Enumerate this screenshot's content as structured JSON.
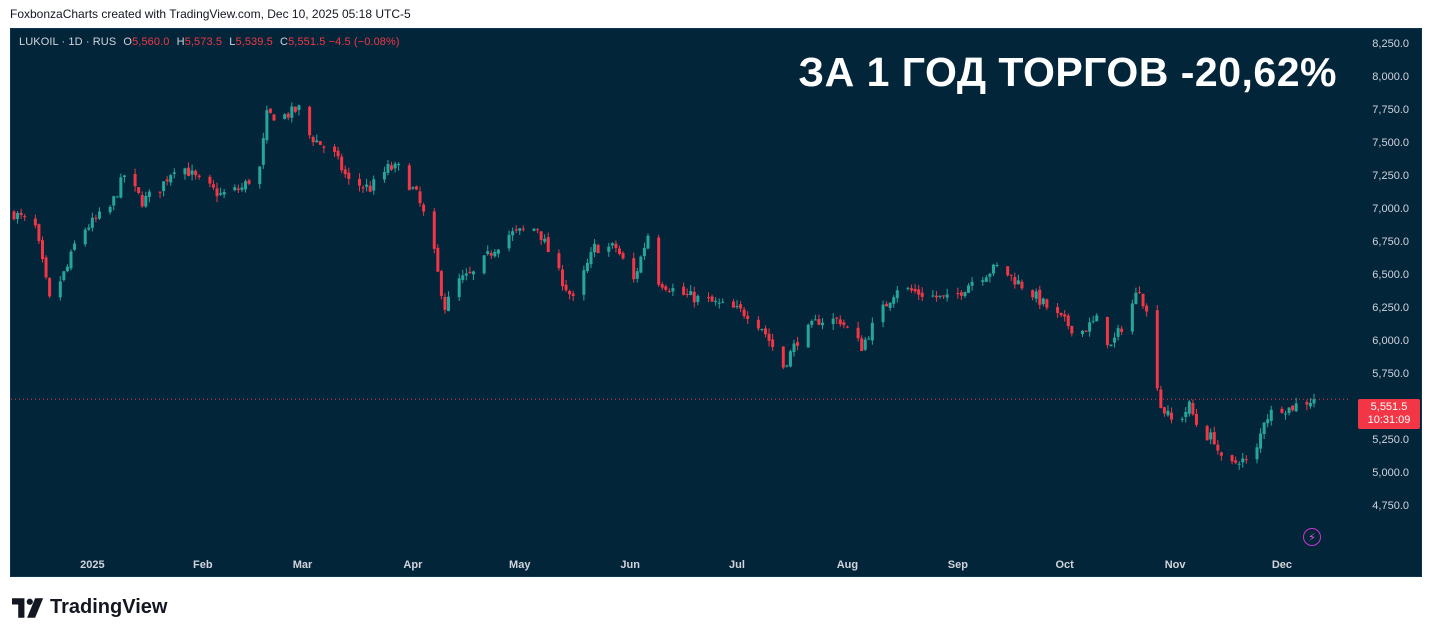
{
  "caption": "FoxbonzaCharts created with TradingView.com, Dec 10, 2025 05:18 UTC-5",
  "legend": {
    "symbol": "LUKOIL · 1D · RUS",
    "o_label": "O",
    "o": "5,560.0",
    "h_label": "H",
    "h": "5,573.5",
    "l_label": "L",
    "l": "5,539.5",
    "c_label": "C",
    "c": "5,551.5",
    "change": "−4.5 (−0.08%)"
  },
  "headline": "ЗА 1 ГОД ТОРГОВ -20,62%",
  "price_tag": {
    "price": "5,551.5",
    "countdown": "10:31:09"
  },
  "brand": "TradingView",
  "icons": {
    "bolt": "lightning-icon",
    "logo": "tradingview-logo-icon"
  },
  "colors": {
    "background": "#03253a",
    "up": "#26a69a",
    "down": "#f23645",
    "axis_text": "#d1d4dc"
  },
  "chart_data": {
    "type": "candlestick",
    "y_ticks": [
      "8,250.0",
      "8,000.0",
      "7,750.0",
      "7,500.0",
      "7,250.0",
      "7,000.0",
      "6,750.0",
      "6,500.0",
      "6,250.0",
      "6,000.0",
      "5,750.0",
      "5,500.0",
      "5,250.0",
      "5,000.0",
      "4,750.0"
    ],
    "y_tick_values": [
      8250,
      8000,
      7750,
      7500,
      7250,
      7000,
      6750,
      6500,
      6250,
      6000,
      5750,
      5500,
      5250,
      5000,
      4750
    ],
    "ylim": [
      4600,
      8300
    ],
    "x_ticks": [
      "2025",
      "Feb",
      "Mar",
      "Apr",
      "May",
      "Jun",
      "Jul",
      "Aug",
      "Sep",
      "Oct",
      "Nov",
      "Dec"
    ],
    "x_tick_dates": [
      "2025-01-01",
      "2025-02-01",
      "2025-03-01",
      "2025-04-01",
      "2025-05-01",
      "2025-06-01",
      "2025-07-01",
      "2025-08-01",
      "2025-09-01",
      "2025-10-01",
      "2025-11-01",
      "2025-12-01"
    ],
    "xlim": [
      "2024-12-10",
      "2025-12-10"
    ],
    "last_price": 5551.5,
    "close_path": [
      [
        "2024-12-10",
        6960
      ],
      [
        "2024-12-16",
        6850
      ],
      [
        "2024-12-20",
        6300
      ],
      [
        "2024-12-25",
        6550
      ],
      [
        "2024-12-28",
        6800
      ],
      [
        "2025-01-06",
        7000
      ],
      [
        "2025-01-10",
        7250
      ],
      [
        "2025-01-15",
        7050
      ],
      [
        "2025-01-20",
        7150
      ],
      [
        "2025-01-25",
        7350
      ],
      [
        "2025-01-31",
        7200
      ],
      [
        "2025-02-06",
        7100
      ],
      [
        "2025-02-12",
        7150
      ],
      [
        "2025-02-17",
        7300
      ],
      [
        "2025-02-19",
        7700
      ],
      [
        "2025-02-24",
        7700
      ],
      [
        "2025-02-28",
        7750
      ],
      [
        "2025-03-03",
        7550
      ],
      [
        "2025-03-10",
        7400
      ],
      [
        "2025-03-14",
        7200
      ],
      [
        "2025-03-20",
        7150
      ],
      [
        "2025-03-25",
        7300
      ],
      [
        "2025-03-28",
        7300
      ],
      [
        "2025-04-02",
        7100
      ],
      [
        "2025-04-06",
        6800
      ],
      [
        "2025-04-08",
        6500
      ],
      [
        "2025-04-10",
        6250
      ],
      [
        "2025-04-14",
        6450
      ],
      [
        "2025-04-18",
        6500
      ],
      [
        "2025-04-24",
        6700
      ],
      [
        "2025-04-28",
        6800
      ],
      [
        "2025-05-06",
        6850
      ],
      [
        "2025-05-12",
        6500
      ],
      [
        "2025-05-16",
        6300
      ],
      [
        "2025-05-22",
        6700
      ],
      [
        "2025-05-28",
        6700
      ],
      [
        "2025-06-02",
        6450
      ],
      [
        "2025-06-06",
        6800
      ],
      [
        "2025-06-09",
        6450
      ],
      [
        "2025-06-15",
        6350
      ],
      [
        "2025-06-22",
        6300
      ],
      [
        "2025-06-28",
        6250
      ],
      [
        "2025-07-04",
        6200
      ],
      [
        "2025-07-08",
        6100
      ],
      [
        "2025-07-14",
        5800
      ],
      [
        "2025-07-18",
        6000
      ],
      [
        "2025-07-24",
        6150
      ],
      [
        "2025-07-30",
        6150
      ],
      [
        "2025-08-05",
        5950
      ],
      [
        "2025-08-09",
        6150
      ],
      [
        "2025-08-15",
        6400
      ],
      [
        "2025-08-22",
        6350
      ],
      [
        "2025-08-30",
        6300
      ],
      [
        "2025-09-05",
        6450
      ],
      [
        "2025-09-12",
        6550
      ],
      [
        "2025-09-15",
        6500
      ],
      [
        "2025-09-22",
        6350
      ],
      [
        "2025-09-28",
        6200
      ],
      [
        "2025-10-05",
        6050
      ],
      [
        "2025-10-10",
        6150
      ],
      [
        "2025-10-14",
        5950
      ],
      [
        "2025-10-18",
        6150
      ],
      [
        "2025-10-22",
        6400
      ],
      [
        "2025-10-24",
        6200
      ],
      [
        "2025-10-28",
        5500
      ],
      [
        "2025-11-01",
        5350
      ],
      [
        "2025-11-05",
        5500
      ],
      [
        "2025-11-08",
        5300
      ],
      [
        "2025-11-12",
        5250
      ],
      [
        "2025-11-15",
        5000
      ],
      [
        "2025-11-19",
        5100
      ],
      [
        "2025-11-23",
        5050
      ],
      [
        "2025-11-26",
        5400
      ],
      [
        "2025-11-30",
        5500
      ],
      [
        "2025-12-03",
        5480
      ],
      [
        "2025-12-06",
        5520
      ],
      [
        "2025-12-10",
        5551.5
      ]
    ]
  }
}
